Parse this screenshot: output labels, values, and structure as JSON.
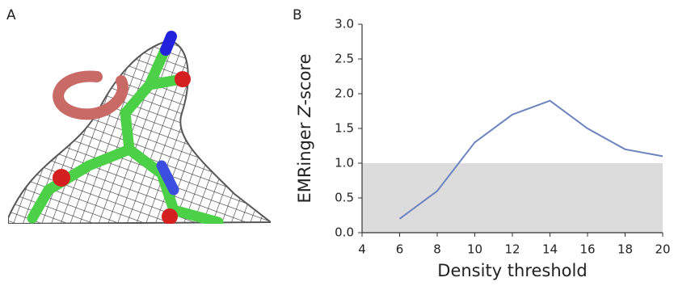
{
  "panel_a": {
    "label": "A"
  },
  "chart_data": {
    "type": "line",
    "panel_label": "B",
    "x_label": "Density threshold",
    "y_label": {
      "prefix": "EMRinger ",
      "italic": "Z",
      "suffix": "-score"
    },
    "x": [
      6,
      8,
      10,
      12,
      14,
      16,
      18,
      20
    ],
    "series": [
      {
        "color": "#6b84bf",
        "values": [
          0.2,
          0.6,
          1.3,
          1.7,
          1.9,
          1.5,
          1.2,
          1.1
        ]
      }
    ],
    "xlim": [
      4,
      20
    ],
    "ylim": [
      0,
      3
    ],
    "xticks": [
      4,
      6,
      8,
      10,
      12,
      14,
      16,
      18,
      20
    ],
    "yticks": [
      {
        "value": 0,
        "label": "0.0"
      },
      {
        "value": 0.5,
        "label": "0.5"
      },
      {
        "value": 1,
        "label": "1.0"
      },
      {
        "value": 1.5,
        "label": "1.5"
      },
      {
        "value": 2,
        "label": "2.0"
      },
      {
        "value": 2.5,
        "label": "2.5"
      },
      {
        "value": 3,
        "label": "3.0"
      }
    ],
    "shaded_ylim": [
      0,
      1
    ],
    "shade_color": "#dcdcdc"
  }
}
